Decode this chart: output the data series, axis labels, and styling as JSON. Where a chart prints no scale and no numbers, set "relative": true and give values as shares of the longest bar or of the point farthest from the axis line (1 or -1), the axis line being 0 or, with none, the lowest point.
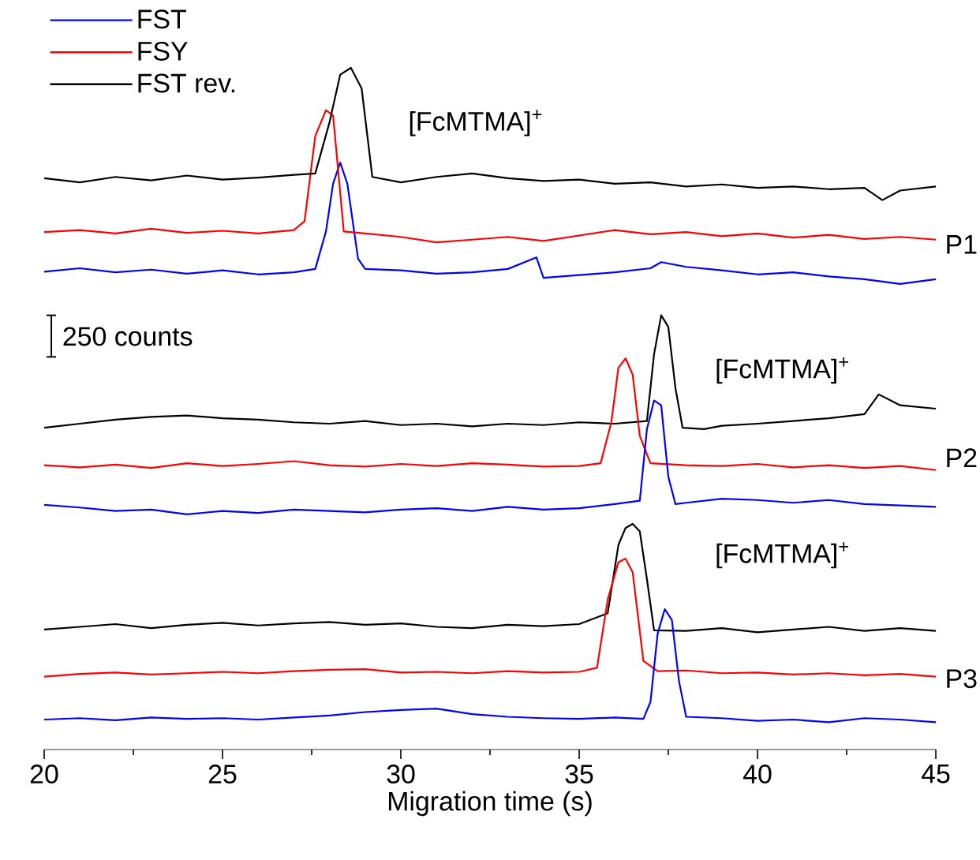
{
  "chart_data": {
    "type": "line",
    "relative": true,
    "xlabel": "Migration time (s)",
    "xlim": [
      20,
      45
    ],
    "xticks": [
      20,
      25,
      30,
      35,
      40,
      45
    ],
    "legend": "top left",
    "marker": "none",
    "line_style": "solid",
    "annotations": [
      "[FcMTMA]$^{+}$",
      "[FcMTMA]$^{+}$",
      "[FcMTMA]$^{+}$",
      "P1",
      "P2",
      "P3",
      "250 counts"
    ],
    "series": [
      {
        "name": "FST",
        "color": "#0000ff",
        "x": [
          20,
          21,
          22,
          23,
          24,
          25,
          26,
          27,
          27.6,
          27.9,
          28.1,
          28.3,
          28.5,
          28.8,
          29,
          30,
          31,
          32,
          33,
          33.8,
          34,
          35,
          36,
          37,
          37.3,
          38,
          39,
          40,
          41,
          42,
          43,
          44,
          45
        ],
        "values": [
          0.701,
          0.706,
          0.7,
          0.704,
          0.698,
          0.703,
          0.697,
          0.7,
          0.705,
          0.76,
          0.83,
          0.861,
          0.83,
          0.72,
          0.705,
          0.703,
          0.698,
          0.7,
          0.705,
          0.722,
          0.692,
          0.696,
          0.7,
          0.706,
          0.715,
          0.708,
          0.703,
          0.697,
          0.7,
          0.694,
          0.69,
          0.683,
          0.69
        ]
      },
      {
        "name": "FSY",
        "color": "#ff0000",
        "x": [
          20,
          21,
          22,
          23,
          24,
          25,
          26,
          27,
          27.3,
          27.6,
          27.9,
          28.1,
          28.4,
          29,
          30,
          31,
          32,
          33,
          34,
          35,
          36,
          37,
          38,
          39,
          40,
          41,
          42,
          43,
          44,
          45
        ],
        "values": [
          0.759,
          0.762,
          0.757,
          0.764,
          0.758,
          0.761,
          0.757,
          0.762,
          0.775,
          0.9,
          0.938,
          0.93,
          0.76,
          0.757,
          0.752,
          0.744,
          0.748,
          0.752,
          0.746,
          0.754,
          0.762,
          0.756,
          0.759,
          0.753,
          0.757,
          0.751,
          0.755,
          0.749,
          0.752,
          0.748
        ]
      },
      {
        "name": "FST rev.",
        "color": "#000000",
        "x": [
          20,
          21,
          22,
          23,
          24,
          25,
          26,
          27,
          27.6,
          28.0,
          28.3,
          28.6,
          28.9,
          29.2,
          30,
          31,
          32,
          33,
          34,
          35,
          36,
          37,
          38,
          39,
          40,
          41,
          42,
          43,
          43.5,
          44,
          45
        ],
        "values": [
          0.838,
          0.832,
          0.84,
          0.835,
          0.842,
          0.836,
          0.839,
          0.843,
          0.845,
          0.92,
          0.99,
          1.0,
          0.97,
          0.84,
          0.832,
          0.84,
          0.845,
          0.838,
          0.834,
          0.836,
          0.83,
          0.832,
          0.826,
          0.829,
          0.824,
          0.826,
          0.822,
          0.824,
          0.806,
          0.82,
          0.826
        ]
      },
      {
        "color": "#000000",
        "x": [
          20,
          21,
          22,
          23,
          24,
          25,
          26,
          27,
          28,
          29,
          30,
          31,
          32,
          33,
          34,
          35,
          36,
          36.9,
          37.1,
          37.3,
          37.5,
          37.7,
          37.9,
          38.5,
          39,
          40,
          41,
          42,
          43,
          43.4,
          44,
          45
        ],
        "values": [
          0.472,
          0.478,
          0.484,
          0.488,
          0.49,
          0.486,
          0.484,
          0.48,
          0.478,
          0.482,
          0.476,
          0.478,
          0.474,
          0.478,
          0.476,
          0.48,
          0.478,
          0.482,
          0.58,
          0.637,
          0.62,
          0.53,
          0.472,
          0.47,
          0.475,
          0.478,
          0.482,
          0.486,
          0.492,
          0.521,
          0.505,
          0.5
        ]
      },
      {
        "color": "#ff0000",
        "x": [
          20,
          21,
          22,
          23,
          24,
          25,
          26,
          27,
          28,
          29,
          30,
          31,
          32,
          33,
          34,
          35,
          35.6,
          35.9,
          36.1,
          36.3,
          36.5,
          36.7,
          37,
          38,
          39,
          40,
          41,
          42,
          43,
          44,
          45
        ],
        "values": [
          0.417,
          0.414,
          0.418,
          0.413,
          0.42,
          0.416,
          0.419,
          0.423,
          0.417,
          0.415,
          0.419,
          0.416,
          0.42,
          0.418,
          0.415,
          0.416,
          0.42,
          0.48,
          0.56,
          0.574,
          0.55,
          0.46,
          0.42,
          0.417,
          0.416,
          0.419,
          0.414,
          0.417,
          0.413,
          0.416,
          0.41
        ]
      },
      {
        "color": "#0000ff",
        "x": [
          20,
          21,
          22,
          23,
          24,
          25,
          26,
          27,
          28,
          29,
          30,
          31,
          32,
          33,
          34,
          35,
          36,
          36.7,
          36.9,
          37.1,
          37.3,
          37.5,
          37.7,
          38,
          39,
          40,
          41,
          42,
          43,
          44,
          45
        ],
        "values": [
          0.359,
          0.355,
          0.35,
          0.352,
          0.345,
          0.35,
          0.347,
          0.352,
          0.35,
          0.348,
          0.352,
          0.354,
          0.35,
          0.356,
          0.352,
          0.354,
          0.36,
          0.365,
          0.47,
          0.512,
          0.505,
          0.4,
          0.36,
          0.362,
          0.368,
          0.366,
          0.362,
          0.366,
          0.36,
          0.358,
          0.356
        ]
      },
      {
        "color": "#000000",
        "x": [
          20,
          21,
          22,
          23,
          24,
          25,
          26,
          27,
          28,
          29,
          30,
          31,
          32,
          33,
          34,
          35,
          35.8,
          36.1,
          36.3,
          36.5,
          36.7,
          36.9,
          37.1,
          38,
          39,
          40,
          41,
          42,
          43,
          44,
          45
        ],
        "values": [
          0.176,
          0.18,
          0.184,
          0.178,
          0.183,
          0.186,
          0.182,
          0.185,
          0.187,
          0.183,
          0.185,
          0.18,
          0.178,
          0.183,
          0.181,
          0.184,
          0.2,
          0.3,
          0.325,
          0.331,
          0.32,
          0.25,
          0.175,
          0.174,
          0.178,
          0.172,
          0.176,
          0.18,
          0.174,
          0.178,
          0.174
        ]
      },
      {
        "color": "#ff0000",
        "x": [
          20,
          21,
          22,
          23,
          24,
          25,
          26,
          27,
          28,
          29,
          30,
          31,
          32,
          33,
          34,
          35,
          35.5,
          35.8,
          36.1,
          36.3,
          36.5,
          36.8,
          37.2,
          38,
          39,
          40,
          41,
          42,
          43,
          44,
          45
        ],
        "values": [
          0.107,
          0.111,
          0.113,
          0.11,
          0.112,
          0.114,
          0.112,
          0.115,
          0.117,
          0.118,
          0.113,
          0.114,
          0.112,
          0.115,
          0.113,
          0.114,
          0.12,
          0.22,
          0.275,
          0.28,
          0.26,
          0.13,
          0.115,
          0.116,
          0.112,
          0.113,
          0.11,
          0.112,
          0.109,
          0.111,
          0.107
        ]
      },
      {
        "color": "#0000ff",
        "x": [
          20,
          21,
          22,
          23,
          24,
          25,
          26,
          27,
          28,
          29,
          30,
          31,
          32,
          33,
          34,
          35,
          36,
          36.8,
          37.0,
          37.2,
          37.4,
          37.6,
          37.8,
          38.0,
          39,
          40,
          41,
          42,
          43,
          44,
          45
        ],
        "values": [
          0.044,
          0.046,
          0.043,
          0.047,
          0.045,
          0.046,
          0.044,
          0.047,
          0.05,
          0.055,
          0.058,
          0.06,
          0.052,
          0.048,
          0.046,
          0.045,
          0.047,
          0.045,
          0.07,
          0.17,
          0.206,
          0.19,
          0.1,
          0.048,
          0.046,
          0.042,
          0.044,
          0.04,
          0.046,
          0.044,
          0.04
        ]
      }
    ]
  }
}
